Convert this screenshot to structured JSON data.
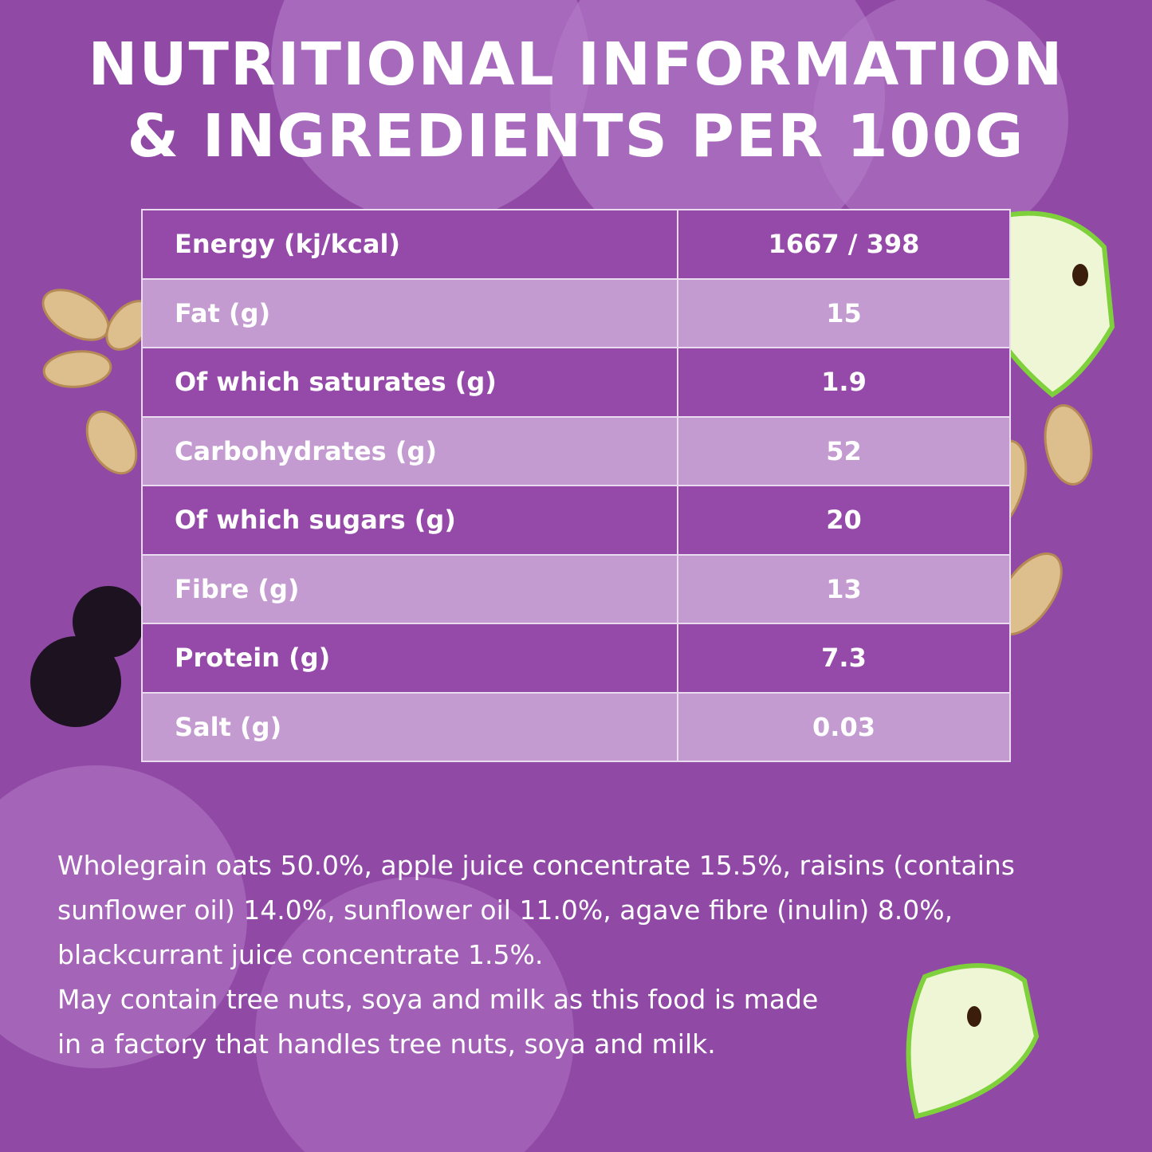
{
  "header": {
    "title_lines": [
      "NUTRITIONAL INFORMATION",
      "& INGREDIENTS PER 100G"
    ]
  },
  "table": {
    "rows": [
      [
        "Energy (kj/kcal)",
        "1667 / 398"
      ],
      [
        "Fat (g)",
        "15"
      ],
      [
        "Of which saturates (g)",
        "1.9"
      ],
      [
        "Carbohydrates (g)",
        "52"
      ],
      [
        "Of which sugars (g)",
        "20"
      ],
      [
        "Fibre (g)",
        "13"
      ],
      [
        "Protein (g)",
        "7.3"
      ],
      [
        "Salt (g)",
        "0.03"
      ]
    ]
  },
  "ingredients": {
    "lines": [
      "Wholegrain oats 50.0%, apple juice concentrate 15.5%, raisins (contains",
      "sunflower oil) 14.0%, sunflower oil 11.0%, agave fibre (inulin) 8.0%,",
      "blackcurrant juice concentrate 1.5%.",
      "May contain tree nuts, soya and milk as this food is made",
      "in a factory that handles tree nuts, soya and milk."
    ]
  }
}
